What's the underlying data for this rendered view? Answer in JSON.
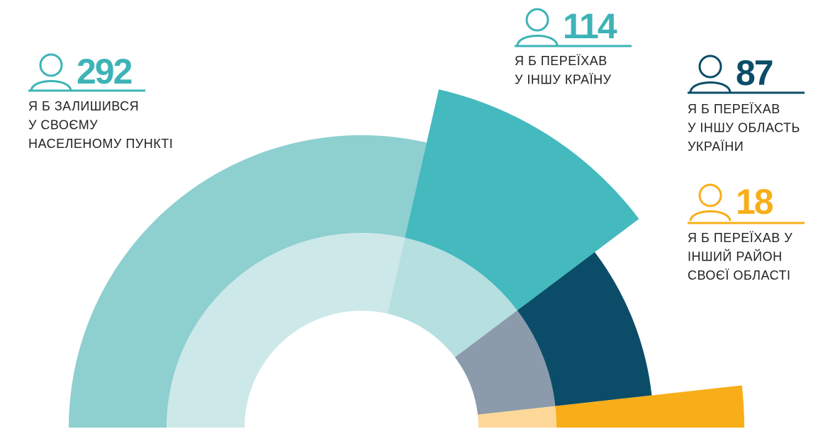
{
  "chart_data": {
    "type": "pie",
    "segments": [
      {
        "value": 292,
        "label": [
          "Я Б ЗАЛИШИВСЯ",
          "У СВОЄМУ",
          "НАСЕЛЕНОМУ ПУНКТІ"
        ],
        "color": "#8ecfd0",
        "inner_color": "#cde8e9",
        "number_color": "#3db3b7"
      },
      {
        "value": 114,
        "label": [
          "Я Б ПЕРЕЇХАВ",
          "У ІНШУ КРАЇНУ"
        ],
        "color": "#44b9be",
        "inner_color": "#b6dfe0",
        "number_color": "#3db3b7"
      },
      {
        "value": 87,
        "label": [
          "Я Б ПЕРЕЇХАВ",
          "У ІНШУ ОБЛАСТЬ",
          "УКРАЇНИ"
        ],
        "color": "#0b4d68",
        "inner_color": "#8b9bac",
        "number_color": "#0b4d68"
      },
      {
        "value": 18,
        "label": [
          "Я Б ПЕРЕЇХАВ У",
          "ІНШИЙ РАЙОН",
          "СВОЄЇ ОБЛАСТІ"
        ],
        "color": "#f8ae19",
        "inner_color": "#fdd898",
        "number_color": "#f8ae19"
      }
    ]
  }
}
